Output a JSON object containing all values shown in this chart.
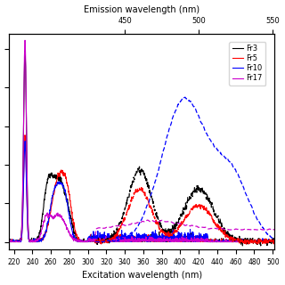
{
  "title_top": "Emission wavelength (nm)",
  "title_bottom": "Excitation wavelength (nm)",
  "excitation_xlim": [
    215,
    502
  ],
  "colors": {
    "Fr3": "#000000",
    "Fr5": "#ff0000",
    "Fr10": "#0000ff",
    "Fr17": "#cc00cc"
  },
  "legend_labels": [
    "Fr3",
    "Fr5",
    "Fr10",
    "Fr17"
  ],
  "background": "#ffffff",
  "em_tick_nms": [
    450,
    500,
    550
  ],
  "exc_ticks": [
    220,
    240,
    260,
    280,
    300,
    320,
    340,
    360,
    380,
    400,
    420,
    440,
    460,
    480,
    500
  ]
}
